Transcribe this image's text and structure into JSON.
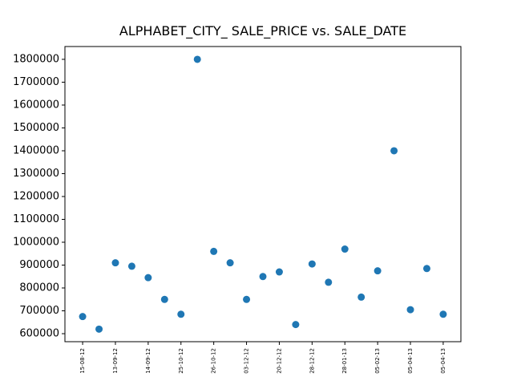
{
  "chart_data": {
    "type": "scatter",
    "title": "ALPHABET_CITY_ SALE_PRICE vs. SALE_DATE",
    "categories": [
      "15-08-12",
      null,
      "13-09-12",
      null,
      "14-09-12",
      null,
      "25-10-12",
      null,
      "26-10-12",
      null,
      "03-12-12",
      null,
      "20-12-12",
      null,
      "28-12-12",
      null,
      "28-01-13",
      null,
      "05-02-13",
      null,
      "05-04-13",
      null,
      "05-04-13"
    ],
    "values": [
      675000,
      620000,
      910000,
      895000,
      845000,
      750000,
      685000,
      1800000,
      960000,
      910000,
      750000,
      850000,
      870000,
      640000,
      905000,
      825000,
      970000,
      760000,
      875000,
      1400000,
      705000,
      885000,
      685000
    ],
    "color": "#1f77b4",
    "ylim": [
      565000,
      1856000
    ],
    "yticks": [
      600000,
      700000,
      800000,
      900000,
      1000000,
      1100000,
      1200000,
      1300000,
      1400000,
      1500000,
      1600000,
      1700000,
      1800000
    ]
  }
}
